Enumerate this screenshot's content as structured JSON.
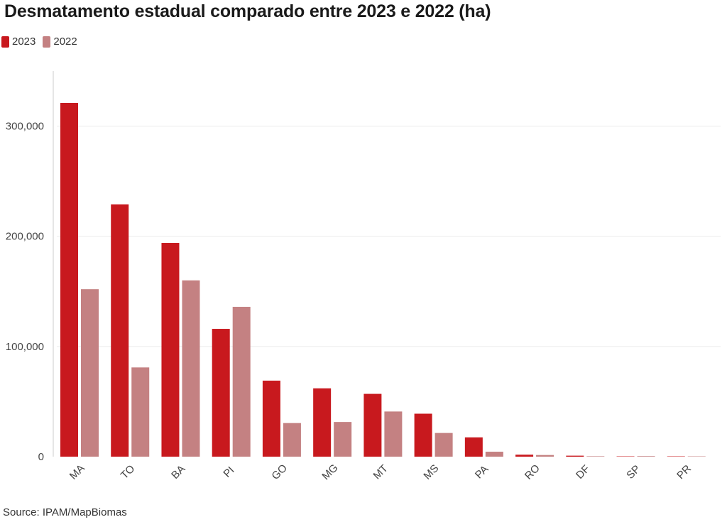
{
  "title": "Desmatamento estadual comparado entre 2023 e 2022 (ha)",
  "source": "Source: IPAM/MapBiomas",
  "colors": {
    "y2023": "#c8191e",
    "y2022": "#c48182",
    "grid": "#ebebeb",
    "axis": "#cccccc"
  },
  "chart_data": {
    "type": "bar",
    "title": "Desmatamento estadual comparado entre 2023 e 2022 (ha)",
    "xlabel": "",
    "ylabel": "",
    "categories": [
      "MA",
      "TO",
      "BA",
      "PI",
      "GO",
      "MG",
      "MT",
      "MS",
      "PA",
      "RO",
      "DF",
      "SP",
      "PR"
    ],
    "series": [
      {
        "name": "2023",
        "color": "#c8191e",
        "values": [
          321000,
          229000,
          194000,
          116000,
          69000,
          62000,
          57000,
          39000,
          17500,
          1800,
          900,
          200,
          100
        ]
      },
      {
        "name": "2022",
        "color": "#c48182",
        "values": [
          152000,
          81000,
          160000,
          136000,
          30500,
          31500,
          41000,
          21500,
          4500,
          1500,
          400,
          500,
          100
        ]
      }
    ],
    "ylim": [
      0,
      350000
    ],
    "yticks": [
      0,
      100000,
      200000,
      300000
    ],
    "ytick_labels": [
      "0",
      "100,000",
      "200,000",
      "300,000"
    ],
    "grid": true,
    "legend": "top-left"
  }
}
